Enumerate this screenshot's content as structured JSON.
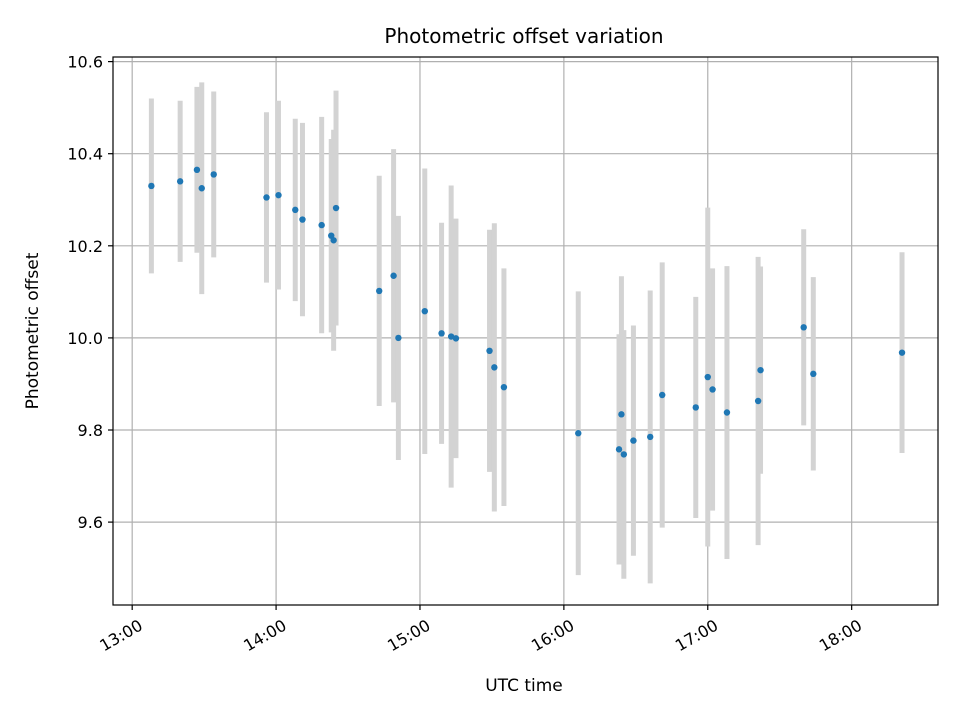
{
  "chart_data": {
    "type": "scatter",
    "title": "Photometric offset variation",
    "xlabel": "UTC time",
    "ylabel": "Photometric offset",
    "xlim": [
      "12:52",
      "18:36"
    ],
    "ylim": [
      9.42,
      10.61
    ],
    "grid": true,
    "x_ticks": [
      "13:00",
      "14:00",
      "15:00",
      "16:00",
      "17:00",
      "18:00"
    ],
    "y_ticks": [
      9.6,
      9.8,
      10.0,
      10.2,
      10.4,
      10.6
    ],
    "colors": {
      "point": "#1f77b4",
      "errorbar": "#d3d3d3",
      "grid": "#b0b0b0"
    },
    "points": [
      {
        "t": "13:08",
        "y": 10.33,
        "err": 0.19
      },
      {
        "t": "13:20",
        "y": 10.34,
        "err": 0.175
      },
      {
        "t": "13:27",
        "y": 10.365,
        "err": 0.18
      },
      {
        "t": "13:29",
        "y": 10.325,
        "err": 0.23
      },
      {
        "t": "13:34",
        "y": 10.355,
        "err": 0.18
      },
      {
        "t": "13:56",
        "y": 10.305,
        "err": 0.185
      },
      {
        "t": "14:01",
        "y": 10.31,
        "err": 0.205
      },
      {
        "t": "14:08",
        "y": 10.278,
        "err": 0.198
      },
      {
        "t": "14:11",
        "y": 10.257,
        "err": 0.21
      },
      {
        "t": "14:19",
        "y": 10.245,
        "err": 0.235
      },
      {
        "t": "14:23",
        "y": 10.222,
        "err": 0.21
      },
      {
        "t": "14:24",
        "y": 10.212,
        "err": 0.24
      },
      {
        "t": "14:25",
        "y": 10.282,
        "err": 0.255
      },
      {
        "t": "14:43",
        "y": 10.102,
        "err": 0.25
      },
      {
        "t": "14:49",
        "y": 10.135,
        "err": 0.275
      },
      {
        "t": "14:51",
        "y": 10.0,
        "err": 0.265
      },
      {
        "t": "15:02",
        "y": 10.058,
        "err": 0.31
      },
      {
        "t": "15:09",
        "y": 10.01,
        "err": 0.24
      },
      {
        "t": "15:13",
        "y": 10.003,
        "err": 0.328
      },
      {
        "t": "15:15",
        "y": 9.999,
        "err": 0.26
      },
      {
        "t": "15:29",
        "y": 9.972,
        "err": 0.263
      },
      {
        "t": "15:31",
        "y": 9.936,
        "err": 0.313
      },
      {
        "t": "15:35",
        "y": 9.893,
        "err": 0.258
      },
      {
        "t": "16:06",
        "y": 9.793,
        "err": 0.308
      },
      {
        "t": "16:23",
        "y": 9.758,
        "err": 0.25
      },
      {
        "t": "16:24",
        "y": 9.834,
        "err": 0.3
      },
      {
        "t": "16:25",
        "y": 9.747,
        "err": 0.27
      },
      {
        "t": "16:29",
        "y": 9.777,
        "err": 0.25
      },
      {
        "t": "16:36",
        "y": 9.785,
        "err": 0.318
      },
      {
        "t": "16:41",
        "y": 9.876,
        "err": 0.288
      },
      {
        "t": "16:55",
        "y": 9.849,
        "err": 0.24
      },
      {
        "t": "17:00",
        "y": 9.915,
        "err": 0.368
      },
      {
        "t": "17:02",
        "y": 9.888,
        "err": 0.263
      },
      {
        "t": "17:08",
        "y": 9.838,
        "err": 0.318
      },
      {
        "t": "17:21",
        "y": 9.863,
        "err": 0.313
      },
      {
        "t": "17:22",
        "y": 9.93,
        "err": 0.225
      },
      {
        "t": "17:40",
        "y": 10.023,
        "err": 0.213
      },
      {
        "t": "17:44",
        "y": 9.922,
        "err": 0.21
      },
      {
        "t": "18:21",
        "y": 9.968,
        "err": 0.218
      }
    ]
  }
}
